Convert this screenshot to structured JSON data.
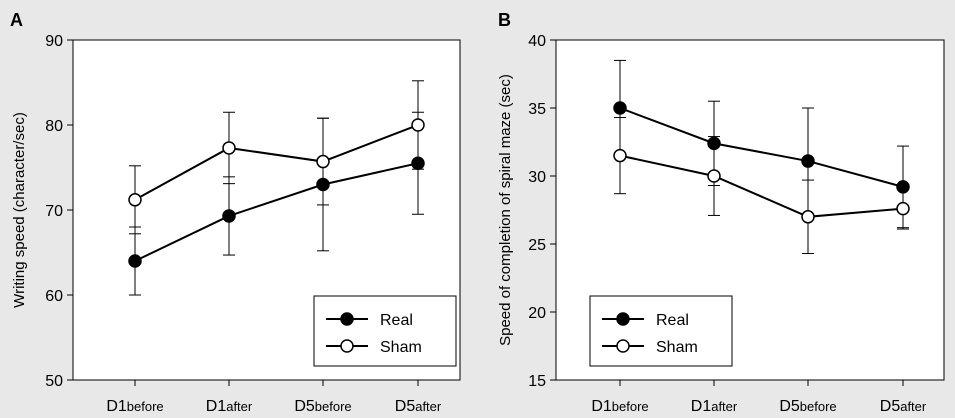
{
  "colors": {
    "background": "#e8e8e8",
    "plot_background": "#ffffff",
    "real_fill": "#000000",
    "sham_fill": "#ffffff",
    "line": "#000000"
  },
  "chart_data": [
    {
      "panel": "A",
      "type": "line",
      "categories": [
        {
          "main": "D1",
          "sub": "before"
        },
        {
          "main": "D1",
          "sub": "after"
        },
        {
          "main": "D5",
          "sub": "before"
        },
        {
          "main": "D5",
          "sub": "after"
        }
      ],
      "ylabel": "Writing speed (character/sec)",
      "ylim": [
        50,
        90
      ],
      "yticks": [
        "50",
        "60",
        "70",
        "80",
        "90"
      ],
      "legend_position": "bottom-right",
      "series": [
        {
          "name": "Real",
          "marker": "filled-circle",
          "values": [
            64.0,
            69.3,
            73.0,
            75.5
          ],
          "error": [
            4.0,
            4.6,
            7.8,
            6.0
          ]
        },
        {
          "name": "Sham",
          "marker": "open-circle",
          "values": [
            71.2,
            77.3,
            75.7,
            80.0
          ],
          "error": [
            4.0,
            4.2,
            5.1,
            5.2
          ]
        }
      ]
    },
    {
      "panel": "B",
      "type": "line",
      "categories": [
        {
          "main": "D1",
          "sub": "before"
        },
        {
          "main": "D1",
          "sub": "after"
        },
        {
          "main": "D5",
          "sub": "before"
        },
        {
          "main": "D5",
          "sub": "after"
        }
      ],
      "ylabel": "Speed of completion of spiral maze (sec)",
      "ylim": [
        15,
        40
      ],
      "yticks": [
        "15",
        "20",
        "25",
        "30",
        "35",
        "40"
      ],
      "legend_position": "bottom-left",
      "series": [
        {
          "name": "Real",
          "marker": "filled-circle",
          "values": [
            35.0,
            32.4,
            31.1,
            29.2
          ],
          "error": [
            3.5,
            3.1,
            3.9,
            3.0
          ]
        },
        {
          "name": "Sham",
          "marker": "open-circle",
          "values": [
            31.5,
            30.0,
            27.0,
            27.6
          ],
          "error": [
            2.8,
            2.9,
            2.7,
            1.5
          ]
        }
      ]
    }
  ]
}
